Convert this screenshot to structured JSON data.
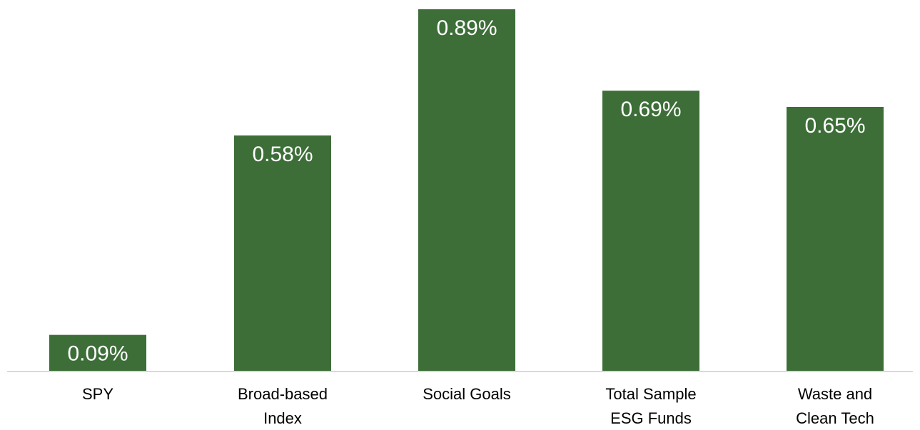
{
  "chart_data": {
    "type": "bar",
    "title": "",
    "xlabel": "",
    "ylabel": "",
    "categories": [
      [
        "SPY"
      ],
      [
        "Broad-based",
        "Index"
      ],
      [
        "Social Goals"
      ],
      [
        "Total Sample",
        "ESG Funds"
      ],
      [
        "Waste and",
        "Clean Tech"
      ]
    ],
    "values": [
      0.09,
      0.58,
      0.89,
      0.69,
      0.65
    ],
    "data_labels": [
      "0.09%",
      "0.58%",
      "0.89%",
      "0.69%",
      "0.65%"
    ],
    "ylim": [
      0,
      0.89
    ],
    "grid": false,
    "legend": "none",
    "bar_color": "#3d6e38",
    "axis_color": "#d9d9d9",
    "label_color": "#ffffff"
  }
}
